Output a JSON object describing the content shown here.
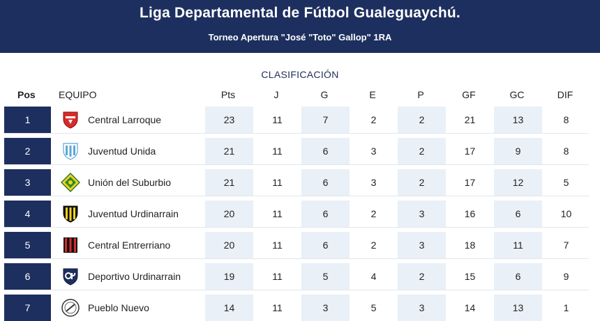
{
  "header": {
    "title": "Liga Departamental de Fútbol Gualeguaychú.",
    "subtitle": "Torneo Apertura \"José \"Toto\" Gallop\" 1RA"
  },
  "section_label": "CLASIFICACIÓN",
  "columns": {
    "pos": "Pos",
    "team": "EQUIPO",
    "pts": "Pts",
    "j": "J",
    "g": "G",
    "e": "E",
    "p": "P",
    "gf": "GF",
    "gc": "GC",
    "dif": "DIF"
  },
  "rows": [
    {
      "pos": "1",
      "team": "Central Larroque",
      "logo": "central-larroque-crest",
      "pts": "23",
      "j": "11",
      "g": "7",
      "e": "2",
      "p": "2",
      "gf": "21",
      "gc": "13",
      "dif": "8"
    },
    {
      "pos": "2",
      "team": "Juventud Unida",
      "logo": "juventud-unida-crest",
      "pts": "21",
      "j": "11",
      "g": "6",
      "e": "3",
      "p": "2",
      "gf": "17",
      "gc": "9",
      "dif": "8"
    },
    {
      "pos": "3",
      "team": "Unión del Suburbio",
      "logo": "union-del-suburbio-crest",
      "pts": "21",
      "j": "11",
      "g": "6",
      "e": "3",
      "p": "2",
      "gf": "17",
      "gc": "12",
      "dif": "5"
    },
    {
      "pos": "4",
      "team": "Juventud Urdinarrain",
      "logo": "juventud-urdinarrain-crest",
      "pts": "20",
      "j": "11",
      "g": "6",
      "e": "2",
      "p": "3",
      "gf": "16",
      "gc": "6",
      "dif": "10"
    },
    {
      "pos": "5",
      "team": "Central Entrerriano",
      "logo": "central-entrerriano-crest",
      "pts": "20",
      "j": "11",
      "g": "6",
      "e": "2",
      "p": "3",
      "gf": "18",
      "gc": "11",
      "dif": "7"
    },
    {
      "pos": "6",
      "team": "Deportivo Urdinarrain",
      "logo": "deportivo-urdinarrain-crest",
      "pts": "19",
      "j": "11",
      "g": "5",
      "e": "4",
      "p": "2",
      "gf": "15",
      "gc": "6",
      "dif": "9"
    },
    {
      "pos": "7",
      "team": "Pueblo Nuevo",
      "logo": "pueblo-nuevo-crest",
      "pts": "14",
      "j": "11",
      "g": "3",
      "e": "5",
      "p": "3",
      "gf": "14",
      "gc": "13",
      "dif": "1"
    }
  ],
  "colors": {
    "header_bg": "#1d2f5e",
    "pos_bg": "#1d2f5e",
    "shade": "#eaf0f7"
  }
}
